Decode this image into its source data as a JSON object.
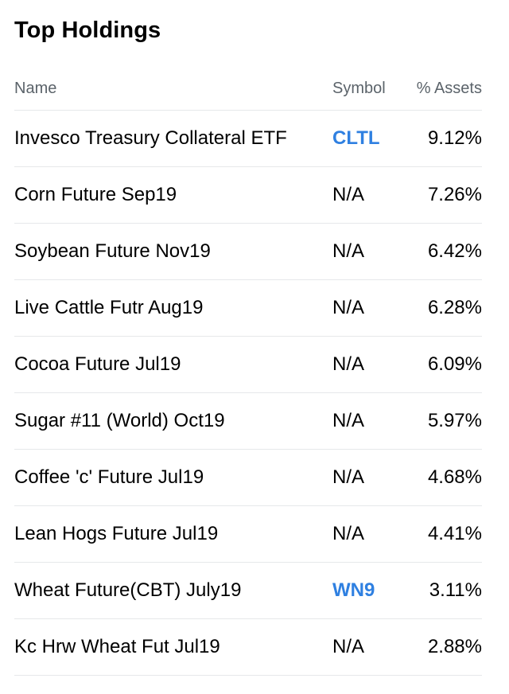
{
  "title": "Top Holdings",
  "columns": {
    "name": "Name",
    "symbol": "Symbol",
    "assets": "% Assets"
  },
  "colors": {
    "link": "#2f80e1",
    "header_text": "#5b636a",
    "divider": "#e6e8ea"
  },
  "holdings": [
    {
      "name": "Invesco Treasury Collateral ETF",
      "symbol": "CLTL",
      "assets": "9.12%",
      "symbol_link": true
    },
    {
      "name": "Corn Future Sep19",
      "symbol": "N/A",
      "assets": "7.26%",
      "symbol_link": false
    },
    {
      "name": "Soybean Future Nov19",
      "symbol": "N/A",
      "assets": "6.42%",
      "symbol_link": false
    },
    {
      "name": "Live Cattle Futr Aug19",
      "symbol": "N/A",
      "assets": "6.28%",
      "symbol_link": false
    },
    {
      "name": "Cocoa Future Jul19",
      "symbol": "N/A",
      "assets": "6.09%",
      "symbol_link": false
    },
    {
      "name": "Sugar #11 (World) Oct19",
      "symbol": "N/A",
      "assets": "5.97%",
      "symbol_link": false
    },
    {
      "name": "Coffee 'c' Future Jul19",
      "symbol": "N/A",
      "assets": "4.68%",
      "symbol_link": false
    },
    {
      "name": "Lean Hogs Future Jul19",
      "symbol": "N/A",
      "assets": "4.41%",
      "symbol_link": false
    },
    {
      "name": "Wheat Future(CBT) July19",
      "symbol": "WN9",
      "assets": "3.11%",
      "symbol_link": true
    },
    {
      "name": "Kc Hrw Wheat Fut Jul19",
      "symbol": "N/A",
      "assets": "2.88%",
      "symbol_link": false
    }
  ]
}
